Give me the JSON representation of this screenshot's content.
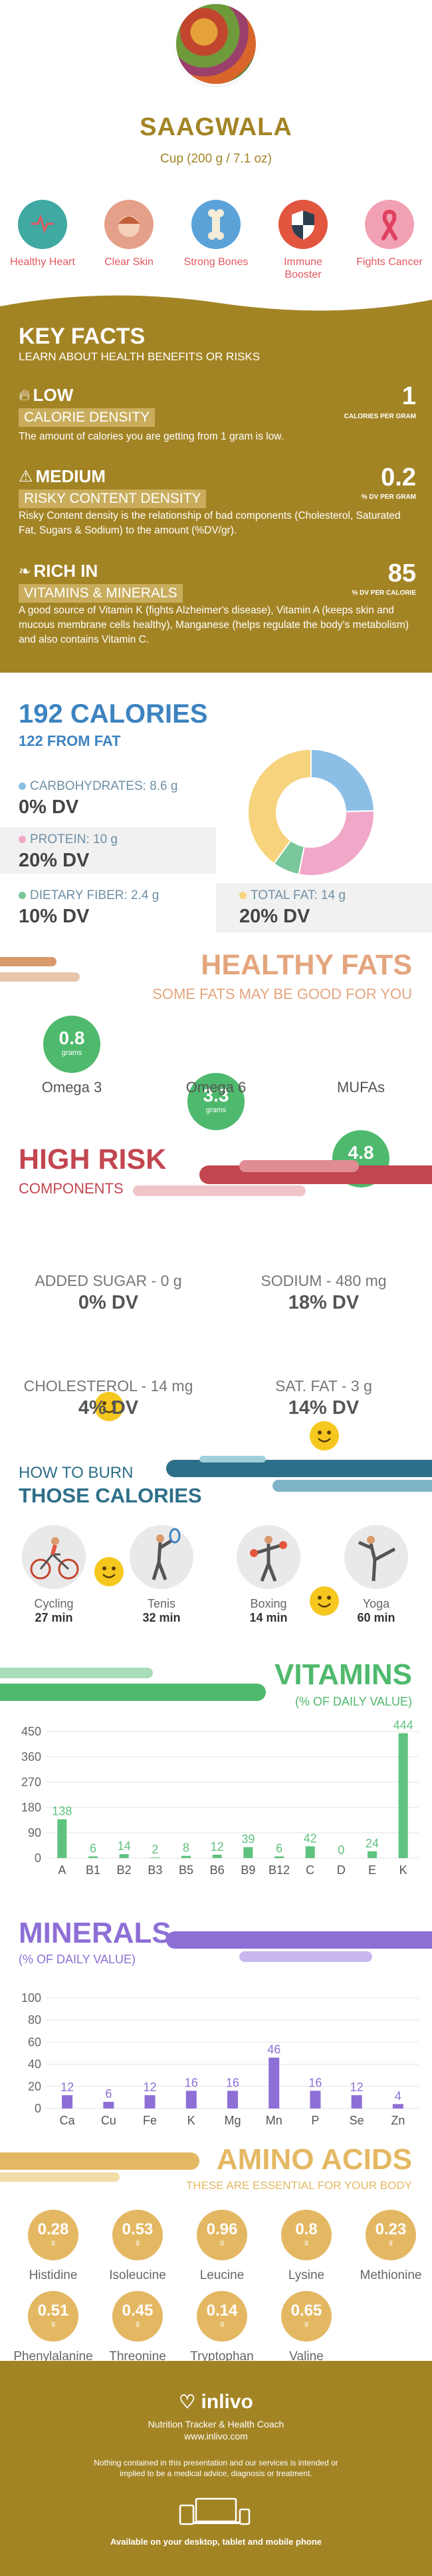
{
  "header": {
    "title": "SAAGWALA",
    "subtitle": "Cup (200 g / 7.1 oz)"
  },
  "benefits": [
    {
      "label": "Healthy Heart",
      "icon": "heart-rate-icon",
      "color": "#3fa9a2"
    },
    {
      "label": "Clear Skin",
      "icon": "face-icon",
      "color": "#e5a08a"
    },
    {
      "label": "Strong Bones",
      "icon": "bone-icon",
      "color": "#5aa2d8"
    },
    {
      "label": "Immune Booster",
      "icon": "shield-icon",
      "color": "#e2553f"
    },
    {
      "label": "Fights Cancer",
      "icon": "ribbon-icon",
      "color": "#f2a0b3"
    }
  ],
  "key_facts": {
    "title": "KEY FACTS",
    "subtitle": "LEARN ABOUT HEALTH BENEFITS OR RISKS",
    "items": [
      {
        "tag": "LOW",
        "sub": "CALORIE DENSITY",
        "value": "1",
        "unit": "CALORIES PER GRAM",
        "text": "The amount of calories you are getting from 1 gram is low."
      },
      {
        "tag": "MEDIUM",
        "sub": "RISKY CONTENT DENSITY",
        "value": "0.2",
        "unit": "% DV PER GRAM",
        "text": "Risky Content density is the relationship of bad components (Cholesterol, Saturated Fat, Sugars & Sodium) to the amount (%DV/gr)."
      },
      {
        "tag": "RICH  IN",
        "sub": "VITAMINS & MINERALS",
        "value": "85",
        "unit": "% DV PER CALORIE",
        "text": "A good source of Vitamin K (fights Alzheimer's disease), Vitamin A (keeps skin and mucous membrane cells healthy), Manganese (helps regulate the body's metabolism) and also contains Vitamin C."
      }
    ]
  },
  "calories": {
    "title": "192 CALORIES",
    "from_fat": "122 FROM FAT",
    "macros": [
      {
        "label": "CARBOHYDRATES: 8.6 g",
        "dv": "0% DV",
        "color": "#8cbfe6"
      },
      {
        "label": "PROTEIN: 10 g",
        "dv": "20% DV",
        "color": "#f1a8c8"
      },
      {
        "label": "DIETARY FIBER: 2.4 g",
        "dv": "10% DV",
        "color": "#79c79a"
      },
      {
        "label": "TOTAL FAT: 14 g",
        "dv": "20% DV",
        "color": "#f6d37c"
      }
    ],
    "donut": [
      {
        "name": "carbs",
        "value": 8.6,
        "color": "#8cbfe6"
      },
      {
        "name": "protein",
        "value": 10,
        "color": "#f1a8c8"
      },
      {
        "name": "fiber",
        "value": 2.4,
        "color": "#79c79a"
      },
      {
        "name": "fat",
        "value": 14,
        "color": "#f6d37c"
      }
    ]
  },
  "healthy_fats": {
    "title": "HEALTHY FATS",
    "subtitle": "SOME FATS MAY BE GOOD FOR YOU",
    "unit": "grams",
    "items": [
      {
        "value": "0.8",
        "label": "Omega 3"
      },
      {
        "value": "3.3",
        "label": "Omega 6"
      },
      {
        "value": "4.8",
        "label": "MUFAs"
      }
    ]
  },
  "high_risk": {
    "title": "HIGH RISK",
    "subtitle": "COMPONENTS",
    "items": [
      {
        "label": "ADDED SUGAR - 0 g",
        "dv": "0% DV"
      },
      {
        "label": "SODIUM - 480 mg",
        "dv": "18% DV"
      },
      {
        "label": "CHOLESTEROL - 14 mg",
        "dv": "4% DV"
      },
      {
        "label": "SAT. FAT - 3 g",
        "dv": "14% DV"
      }
    ]
  },
  "burn": {
    "title_line1": "HOW TO BURN",
    "title_line2": "THOSE CALORIES",
    "items": [
      {
        "label": "Cycling",
        "time": "27 min",
        "icon": "cycling-icon"
      },
      {
        "label": "Tenis",
        "time": "32 min",
        "icon": "tennis-icon"
      },
      {
        "label": "Boxing",
        "time": "14 min",
        "icon": "boxing-icon"
      },
      {
        "label": "Yoga",
        "time": "60 min",
        "icon": "yoga-icon"
      }
    ]
  },
  "vitamins": {
    "title": "VITAMINS",
    "subtitle": "(% OF DAILY VALUE)"
  },
  "minerals": {
    "title": "MINERALS",
    "subtitle": "(% OF DAILY VALUE)"
  },
  "chart_data": [
    {
      "type": "bar",
      "title": "VITAMINS",
      "categories": [
        "A",
        "B1",
        "B2",
        "B3",
        "B5",
        "B6",
        "B9",
        "B12",
        "C",
        "D",
        "E",
        "K"
      ],
      "values": [
        138,
        6,
        14,
        2,
        8,
        12,
        39,
        6,
        42,
        0,
        24,
        444
      ],
      "yticks": [
        0,
        90,
        180,
        270,
        360,
        450
      ],
      "ylim": [
        0,
        450
      ],
      "color": "#5fc27e"
    },
    {
      "type": "bar",
      "title": "MINERALS",
      "categories": [
        "Ca",
        "Cu",
        "Fe",
        "K",
        "Mg",
        "Mn",
        "P",
        "Se",
        "Zn"
      ],
      "values": [
        12,
        6,
        12,
        16,
        16,
        46,
        16,
        12,
        4
      ],
      "yticks": [
        0,
        20,
        40,
        60,
        80,
        100
      ],
      "ylim": [
        0,
        100
      ],
      "color": "#8d6fd6"
    }
  ],
  "amino": {
    "title": "AMINO ACIDS",
    "subtitle": "THESE ARE ESSENTIAL FOR YOUR BODY",
    "unit": "g",
    "row1": [
      {
        "value": "0.28",
        "label": "Histidine"
      },
      {
        "value": "0.53",
        "label": "Isoleucine"
      },
      {
        "value": "0.96",
        "label": "Leucine"
      },
      {
        "value": "0.8",
        "label": "Lysine"
      },
      {
        "value": "0.23",
        "label": "Methionine"
      }
    ],
    "row2": [
      {
        "value": "0.51",
        "label": "Phenylalanine"
      },
      {
        "value": "0.45",
        "label": "Threonine"
      },
      {
        "value": "0.14",
        "label": "Tryptophan"
      },
      {
        "value": "0.65",
        "label": "Valine"
      }
    ]
  },
  "footer": {
    "brand": "inlivo",
    "tagline": "Nutrition Tracker & Health Coach",
    "url": "www.inlivo.com",
    "disclaimer": "Nothing contained in this presentation and our services is intended or implied to be a medical advice, diagnosis or treatment.",
    "availability": "Available on your desktop, tablet and mobile phone"
  }
}
